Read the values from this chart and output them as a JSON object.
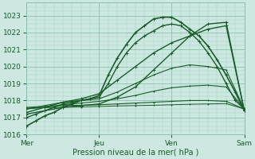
{
  "xlabel": "Pression niveau de la mer( hPa )",
  "bg_color": "#cce8e0",
  "grid_color": "#aad4c8",
  "line_color": "#1a5c2a",
  "marker": "+",
  "xlim": [
    0,
    72
  ],
  "ylim": [
    1016.0,
    1023.5
  ],
  "yticks": [
    1016,
    1017,
    1018,
    1019,
    1020,
    1021,
    1022,
    1023
  ],
  "xticks": [
    0,
    24,
    48,
    72
  ],
  "xtick_labels": [
    "Mer",
    "Jeu",
    "Ven",
    "Sam"
  ],
  "lines": [
    {
      "x": [
        0,
        3,
        6,
        9,
        12,
        15,
        18,
        21,
        24,
        27,
        30,
        33,
        36,
        39,
        42,
        45,
        48,
        51,
        54,
        57,
        60,
        63,
        66,
        69,
        72
      ],
      "y": [
        1016.5,
        1016.8,
        1017.1,
        1017.3,
        1017.6,
        1017.8,
        1018.0,
        1018.1,
        1018.3,
        1019.5,
        1020.5,
        1021.3,
        1022.0,
        1022.4,
        1022.8,
        1022.9,
        1022.9,
        1022.6,
        1022.2,
        1021.8,
        1021.2,
        1020.4,
        1019.5,
        1018.5,
        1017.4
      ],
      "lw": 1.2,
      "marker_size": 2.5
    },
    {
      "x": [
        0,
        3,
        6,
        9,
        12,
        15,
        18,
        21,
        24,
        27,
        30,
        33,
        36,
        39,
        42,
        45,
        48,
        51,
        54,
        57,
        60,
        63,
        66,
        69,
        72
      ],
      "y": [
        1017.0,
        1017.2,
        1017.4,
        1017.6,
        1017.8,
        1017.9,
        1018.0,
        1018.1,
        1018.2,
        1019.0,
        1020.0,
        1020.8,
        1021.4,
        1021.8,
        1022.1,
        1022.4,
        1022.5,
        1022.4,
        1022.0,
        1021.5,
        1020.8,
        1020.0,
        1019.0,
        1018.0,
        1017.5
      ],
      "lw": 1.0,
      "marker_size": 2.5
    },
    {
      "x": [
        0,
        6,
        12,
        18,
        24,
        30,
        36,
        42,
        48,
        54,
        60,
        66,
        72
      ],
      "y": [
        1017.3,
        1017.6,
        1017.9,
        1018.1,
        1018.4,
        1019.2,
        1020.0,
        1020.8,
        1021.4,
        1021.8,
        1022.2,
        1022.4,
        1017.4
      ],
      "lw": 1.0,
      "marker_size": 2.5
    },
    {
      "x": [
        0,
        6,
        12,
        18,
        24,
        30,
        36,
        42,
        48,
        54,
        60,
        66,
        72
      ],
      "y": [
        1017.5,
        1017.7,
        1017.9,
        1018.0,
        1018.1,
        1018.5,
        1019.0,
        1019.5,
        1019.9,
        1020.1,
        1020.0,
        1019.8,
        1017.5
      ],
      "lw": 0.8,
      "marker_size": 2.0
    },
    {
      "x": [
        0,
        6,
        12,
        18,
        24,
        30,
        36,
        42,
        48,
        54,
        60,
        66,
        72
      ],
      "y": [
        1017.5,
        1017.6,
        1017.75,
        1017.85,
        1017.95,
        1018.1,
        1018.3,
        1018.55,
        1018.75,
        1018.85,
        1018.9,
        1018.8,
        1017.5
      ],
      "lw": 0.8,
      "marker_size": 2.0
    },
    {
      "x": [
        0,
        6,
        12,
        18,
        24,
        30,
        36,
        42,
        48,
        54,
        60,
        66,
        72
      ],
      "y": [
        1017.6,
        1017.65,
        1017.7,
        1017.72,
        1017.75,
        1017.8,
        1017.85,
        1017.9,
        1017.95,
        1018.0,
        1018.0,
        1017.95,
        1017.5
      ],
      "lw": 0.8,
      "marker_size": 2.0
    },
    {
      "x": [
        0,
        6,
        12,
        18,
        24,
        30,
        36,
        42,
        48,
        54,
        60,
        66,
        72
      ],
      "y": [
        1017.55,
        1017.58,
        1017.6,
        1017.62,
        1017.65,
        1017.68,
        1017.7,
        1017.72,
        1017.75,
        1017.78,
        1017.8,
        1017.82,
        1017.5
      ],
      "lw": 0.7,
      "marker_size": 1.5
    },
    {
      "x": [
        0,
        6,
        12,
        18,
        24,
        30,
        36,
        42,
        48,
        54,
        60,
        66,
        72
      ],
      "y": [
        1017.2,
        1017.4,
        1017.6,
        1017.7,
        1017.8,
        1018.2,
        1018.8,
        1019.8,
        1020.8,
        1021.8,
        1022.5,
        1022.6,
        1017.4
      ],
      "lw": 1.0,
      "marker_size": 2.5
    }
  ]
}
